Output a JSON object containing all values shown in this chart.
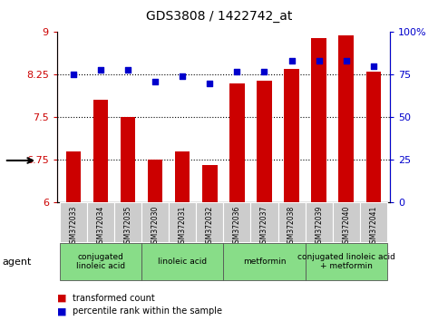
{
  "title": "GDS3808 / 1422742_at",
  "samples": [
    "GSM372033",
    "GSM372034",
    "GSM372035",
    "GSM372030",
    "GSM372031",
    "GSM372032",
    "GSM372036",
    "GSM372037",
    "GSM372038",
    "GSM372039",
    "GSM372040",
    "GSM372041"
  ],
  "bar_values": [
    6.9,
    7.8,
    7.5,
    6.75,
    6.9,
    6.65,
    8.1,
    8.15,
    8.35,
    8.9,
    8.95,
    8.3
  ],
  "dot_values": [
    75,
    78,
    78,
    71,
    74,
    70,
    77,
    77,
    83,
    83,
    83,
    80
  ],
  "bar_color": "#cc0000",
  "dot_color": "#0000cc",
  "ylim_left": [
    6,
    9
  ],
  "ylim_right": [
    0,
    100
  ],
  "yticks_left": [
    6,
    6.75,
    7.5,
    8.25,
    9
  ],
  "ytick_labels_left": [
    "6",
    "6.75",
    "7.5",
    "8.25",
    "9"
  ],
  "yticks_right": [
    0,
    25,
    50,
    75,
    100
  ],
  "ytick_labels_right": [
    "0",
    "25",
    "50",
    "75",
    "100%"
  ],
  "hlines": [
    6.75,
    7.5,
    8.25
  ],
  "agent_groups": [
    {
      "label": "conjugated\nlinoleic acid",
      "start": 0,
      "end": 3
    },
    {
      "label": "linoleic acid",
      "start": 3,
      "end": 6
    },
    {
      "label": "metformin",
      "start": 6,
      "end": 9
    },
    {
      "label": "conjugated linoleic acid\n+ metformin",
      "start": 9,
      "end": 12
    }
  ],
  "agent_group_color": "#88dd88",
  "sample_box_color": "#cccccc",
  "legend_bar_label": "transformed count",
  "legend_dot_label": "percentile rank within the sample",
  "agent_label": "agent",
  "plot_bg": "#ffffff"
}
